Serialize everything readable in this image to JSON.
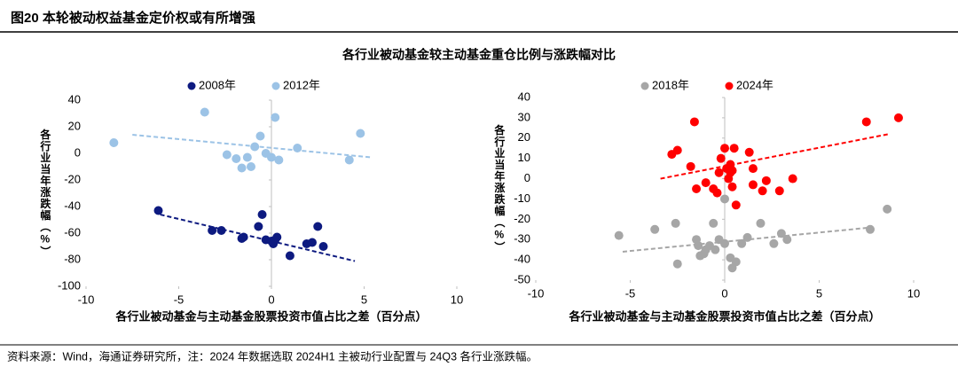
{
  "header": "图20 本轮被动权益基金定价权或有所增强",
  "title": "各行业被动基金较主动基金重仓比例与涨跌幅对比",
  "source": "资料来源：Wind，海通证券研究所，注：2024 年数据选取 2024H1 主被动行业配置与 24Q3 各行业涨跌幅。",
  "chart_data": [
    {
      "type": "scatter",
      "xlabel": "各行业被动基金与主动基金股票投资市值占比之差（百分点）",
      "ylabel": "各行业当年涨跌幅（%）",
      "xlim": [
        -10,
        10
      ],
      "xticks": [
        -10,
        -5,
        0,
        5,
        10
      ],
      "ylim": [
        -100,
        40
      ],
      "yticks": [
        -100,
        -80,
        -60,
        -40,
        -20,
        0,
        20,
        40
      ],
      "legend": "top",
      "series": [
        {
          "name": "2008年",
          "color": "#0d1a80",
          "x": [
            -6.1,
            -3.2,
            -2.7,
            -1.6,
            -1.5,
            -0.7,
            -0.5,
            -0.3,
            0,
            0.1,
            0.3,
            0.2,
            1.0,
            1.9,
            2.2,
            2.5,
            2.8
          ],
          "values": [
            -43,
            -58,
            -58,
            -64,
            -63,
            -55,
            -46,
            -65,
            -66,
            -68,
            -63,
            -65,
            -77,
            -68,
            -67,
            -55,
            -70
          ],
          "trend": {
            "x": [
              -6.0,
              4.5
            ],
            "y": [
              -46,
              -81
            ]
          }
        },
        {
          "name": "2012年",
          "color": "#9cc3e6",
          "x": [
            -8.5,
            -3.6,
            -2.4,
            -1.9,
            -1.6,
            -1.3,
            -1.1,
            -0.9,
            -0.6,
            -0.3,
            0,
            0.2,
            0.4,
            1.4,
            4.2,
            4.8
          ],
          "values": [
            8,
            31,
            -1,
            -4,
            -11,
            -3,
            -10,
            5,
            13,
            0,
            -3,
            27,
            -5,
            4,
            -5,
            15
          ],
          "trend": {
            "x": [
              -7.5,
              5.4
            ],
            "y": [
              14,
              -3
            ]
          }
        }
      ]
    },
    {
      "type": "scatter",
      "xlabel": "各行业被动基金与主动基金股票投资市值占比之差（百分点）",
      "ylabel": "各行业当年涨跌幅（%）",
      "xlim": [
        -10,
        10
      ],
      "xticks": [
        -10,
        -5,
        0,
        5,
        10
      ],
      "ylim": [
        -50,
        40
      ],
      "yticks": [
        -50,
        -40,
        -30,
        -20,
        -10,
        0,
        10,
        20,
        30,
        40
      ],
      "legend": "top",
      "series": [
        {
          "name": "2018年",
          "color": "#a6a6a6",
          "x": [
            -5.6,
            -3.7,
            -2.6,
            -2.5,
            -1.5,
            -1.4,
            -1.3,
            -1.1,
            -1.0,
            -0.8,
            -0.6,
            -0.5,
            -0.3,
            0,
            0,
            0.3,
            0.4,
            0.6,
            0.9,
            1.2,
            1.9,
            2.6,
            3.0,
            3.3,
            7.7,
            8.6
          ],
          "values": [
            -28,
            -25,
            -22,
            -42,
            -30,
            -33,
            -38,
            -37,
            -35,
            -33,
            -22,
            -35,
            -30,
            -10,
            -32,
            -39,
            -44,
            -41,
            -32,
            -29,
            -22,
            -32,
            -27,
            -30,
            -25,
            -15
          ],
          "trend": {
            "x": [
              -5.4,
              7.8
            ],
            "y": [
              -36,
              -24
            ]
          }
        },
        {
          "name": "2024年",
          "color": "#ff0000",
          "x": [
            -2.8,
            -2.5,
            -1.6,
            -1.8,
            -1.5,
            -1.0,
            -0.6,
            -0.3,
            -0.2,
            -0.4,
            0,
            0.1,
            0.2,
            0.3,
            0.4,
            0.5,
            0.6,
            0.4,
            0.3,
            1.3,
            1.5,
            1.5,
            2.2,
            2.0,
            2.9,
            3.6,
            7.5,
            9.2
          ],
          "values": [
            12,
            14,
            28,
            6,
            -5,
            -2,
            -5,
            3,
            10,
            -7,
            15,
            5,
            0,
            3,
            -4,
            15,
            -13,
            4,
            7,
            13,
            5,
            -3,
            -1,
            -6,
            -6,
            0,
            28,
            30
          ],
          "trend": {
            "x": [
              -3.4,
              8.7
            ],
            "y": [
              0,
              22
            ]
          }
        }
      ]
    }
  ]
}
